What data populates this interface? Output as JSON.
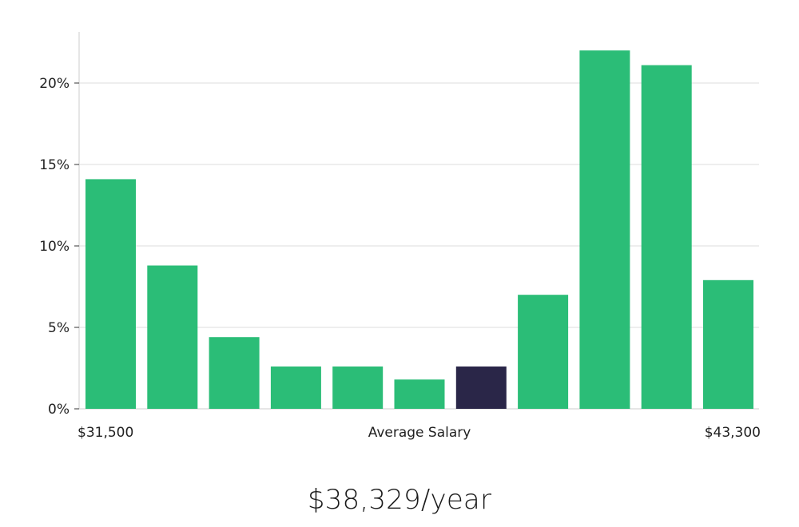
{
  "chart_data": {
    "type": "bar",
    "ylim": [
      0,
      23
    ],
    "yticks": [
      0,
      5,
      10,
      15,
      20
    ],
    "ytick_labels": [
      "0%",
      "5%",
      "10%",
      "15%",
      "20%"
    ],
    "grid": true,
    "values": [
      14.1,
      8.8,
      4.4,
      2.6,
      2.6,
      1.8,
      2.6,
      7.0,
      22.0,
      21.1,
      7.9
    ],
    "highlight_index": 6,
    "xlabel_left": "$31,500",
    "xlabel_center": "Average Salary",
    "xlabel_right": "$43,300",
    "colors": {
      "bar": "#2bbd77",
      "highlight": "#2a2648",
      "grid": "#dcdcdc",
      "axis": "#cccccc"
    }
  },
  "headline": "$38,329/year"
}
